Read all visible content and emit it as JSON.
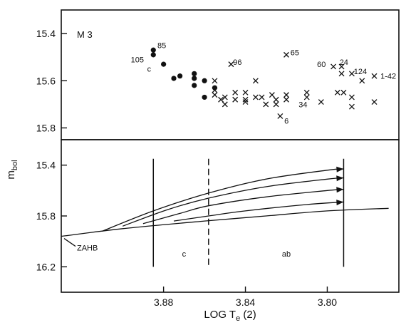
{
  "chart_data": [
    {
      "type": "scatter",
      "panel_label": "M 3",
      "x_axis": {
        "reversed": true,
        "xlim": [
          3.93,
          3.765
        ]
      },
      "ylabel": "m_bol",
      "ylim": [
        15.3,
        15.85
      ],
      "yticks": [
        15.4,
        15.6,
        15.8
      ],
      "series": [
        {
          "marker": "filled-circle",
          "points": [
            [
              3.885,
              15.47
            ],
            [
              3.885,
              15.49
            ],
            [
              3.88,
              15.53
            ],
            [
              3.875,
              15.59
            ],
            [
              3.872,
              15.58
            ],
            [
              3.865,
              15.57
            ],
            [
              3.865,
              15.59
            ],
            [
              3.865,
              15.62
            ],
            [
              3.86,
              15.6
            ],
            [
              3.855,
              15.63
            ],
            [
              3.86,
              15.67
            ]
          ]
        },
        {
          "marker": "cross",
          "points": [
            [
              3.855,
              15.6
            ],
            [
              3.855,
              15.64
            ],
            [
              3.855,
              15.66
            ],
            [
              3.852,
              15.68
            ],
            [
              3.85,
              15.67
            ],
            [
              3.85,
              15.7
            ],
            [
              3.847,
              15.53
            ],
            [
              3.845,
              15.65
            ],
            [
              3.845,
              15.68
            ],
            [
              3.84,
              15.65
            ],
            [
              3.84,
              15.68
            ],
            [
              3.84,
              15.69
            ],
            [
              3.835,
              15.6
            ],
            [
              3.835,
              15.67
            ],
            [
              3.832,
              15.67
            ],
            [
              3.83,
              15.7
            ],
            [
              3.827,
              15.66
            ],
            [
              3.825,
              15.68
            ],
            [
              3.825,
              15.7
            ],
            [
              3.82,
              15.66
            ],
            [
              3.82,
              15.68
            ],
            [
              3.823,
              15.75
            ],
            [
              3.82,
              15.49
            ],
            [
              3.81,
              15.65
            ],
            [
              3.81,
              15.67
            ],
            [
              3.803,
              15.69
            ],
            [
              3.797,
              15.54
            ],
            [
              3.795,
              15.65
            ],
            [
              3.793,
              15.54
            ],
            [
              3.793,
              15.57
            ],
            [
              3.792,
              15.65
            ],
            [
              3.788,
              15.57
            ],
            [
              3.788,
              15.67
            ],
            [
              3.788,
              15.71
            ],
            [
              3.783,
              15.6
            ],
            [
              3.777,
              15.58
            ],
            [
              3.777,
              15.69
            ]
          ]
        }
      ],
      "point_labels": [
        {
          "text": "85",
          "x": 3.883,
          "y": 15.45
        },
        {
          "text": "105",
          "x": 3.896,
          "y": 15.51
        },
        {
          "text": "c",
          "x": 3.888,
          "y": 15.55
        },
        {
          "text": "96",
          "x": 3.846,
          "y": 15.52
        },
        {
          "text": "65",
          "x": 3.818,
          "y": 15.48
        },
        {
          "text": "60",
          "x": 3.805,
          "y": 15.53
        },
        {
          "text": "24",
          "x": 3.794,
          "y": 15.52
        },
        {
          "text": "124",
          "x": 3.787,
          "y": 15.56
        },
        {
          "text": "1-42",
          "x": 3.774,
          "y": 15.58
        },
        {
          "text": "34",
          "x": 3.814,
          "y": 15.7
        },
        {
          "text": "6",
          "x": 3.821,
          "y": 15.77
        }
      ]
    },
    {
      "type": "line",
      "x_axis": {
        "reversed": true,
        "xlim": [
          3.93,
          3.765
        ],
        "ticks": [
          "3.88",
          "3.84",
          "3.80"
        ],
        "label": "LOG T_e (2)"
      },
      "ylim": [
        15.2,
        16.4
      ],
      "yticks": [
        15.4,
        15.8,
        16.2
      ],
      "vertical_lines": [
        {
          "x": 3.885,
          "style": "solid"
        },
        {
          "x": 3.858,
          "style": "dashed"
        },
        {
          "x": 3.792,
          "style": "solid"
        }
      ],
      "zahb": {
        "label": "ZAHB",
        "x": [
          3.93,
          3.9,
          3.86,
          3.83,
          3.8,
          3.77
        ],
        "y": [
          15.96,
          15.9,
          15.84,
          15.8,
          15.76,
          15.74
        ]
      },
      "tracks": [
        {
          "x": [
            3.91,
            3.885,
            3.858,
            3.83,
            3.8,
            3.792
          ],
          "y": [
            15.92,
            15.76,
            15.62,
            15.51,
            15.44,
            15.43
          ],
          "arrow": true
        },
        {
          "x": [
            3.9,
            3.878,
            3.858,
            3.83,
            3.8,
            3.792
          ],
          "y": [
            15.88,
            15.75,
            15.66,
            15.57,
            15.51,
            15.5
          ],
          "arrow": true
        },
        {
          "x": [
            3.89,
            3.872,
            3.858,
            3.83,
            3.8,
            3.792
          ],
          "y": [
            15.86,
            15.78,
            15.72,
            15.65,
            15.6,
            15.59
          ],
          "arrow": true
        },
        {
          "x": [
            3.875,
            3.858,
            3.84,
            3.81,
            3.792
          ],
          "y": [
            15.84,
            15.8,
            15.76,
            15.71,
            15.69
          ],
          "arrow": true
        }
      ],
      "region_labels": [
        {
          "text": "c",
          "x": 3.87,
          "y": 16.12
        },
        {
          "text": "ab",
          "x": 3.82,
          "y": 16.12
        }
      ]
    }
  ]
}
